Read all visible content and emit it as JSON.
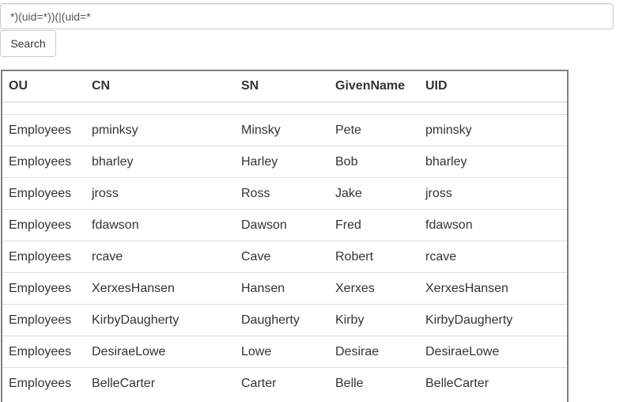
{
  "search": {
    "value": "*)(uid=*))(|(uid=*",
    "button_label": "Search"
  },
  "table": {
    "headers": [
      "OU",
      "CN",
      "SN",
      "GivenName",
      "UID"
    ],
    "rows": [
      [
        "Employees",
        "pminksy",
        "Minsky",
        "Pete",
        "pminsky"
      ],
      [
        "Employees",
        "bharley",
        "Harley",
        "Bob",
        "bharley"
      ],
      [
        "Employees",
        "jross",
        "Ross",
        "Jake",
        "jross"
      ],
      [
        "Employees",
        "fdawson",
        "Dawson",
        "Fred",
        "fdawson"
      ],
      [
        "Employees",
        "rcave",
        "Cave",
        "Robert",
        "rcave"
      ],
      [
        "Employees",
        "XerxesHansen",
        "Hansen",
        "Xerxes",
        "XerxesHansen"
      ],
      [
        "Employees",
        "KirbyDaugherty",
        "Daugherty",
        "Kirby",
        "KirbyDaugherty"
      ],
      [
        "Employees",
        "DesiraeLowe",
        "Lowe",
        "Desirae",
        "DesiraeLowe"
      ],
      [
        "Employees",
        "BelleCarter",
        "Carter",
        "Belle",
        "BelleCarter"
      ]
    ]
  }
}
